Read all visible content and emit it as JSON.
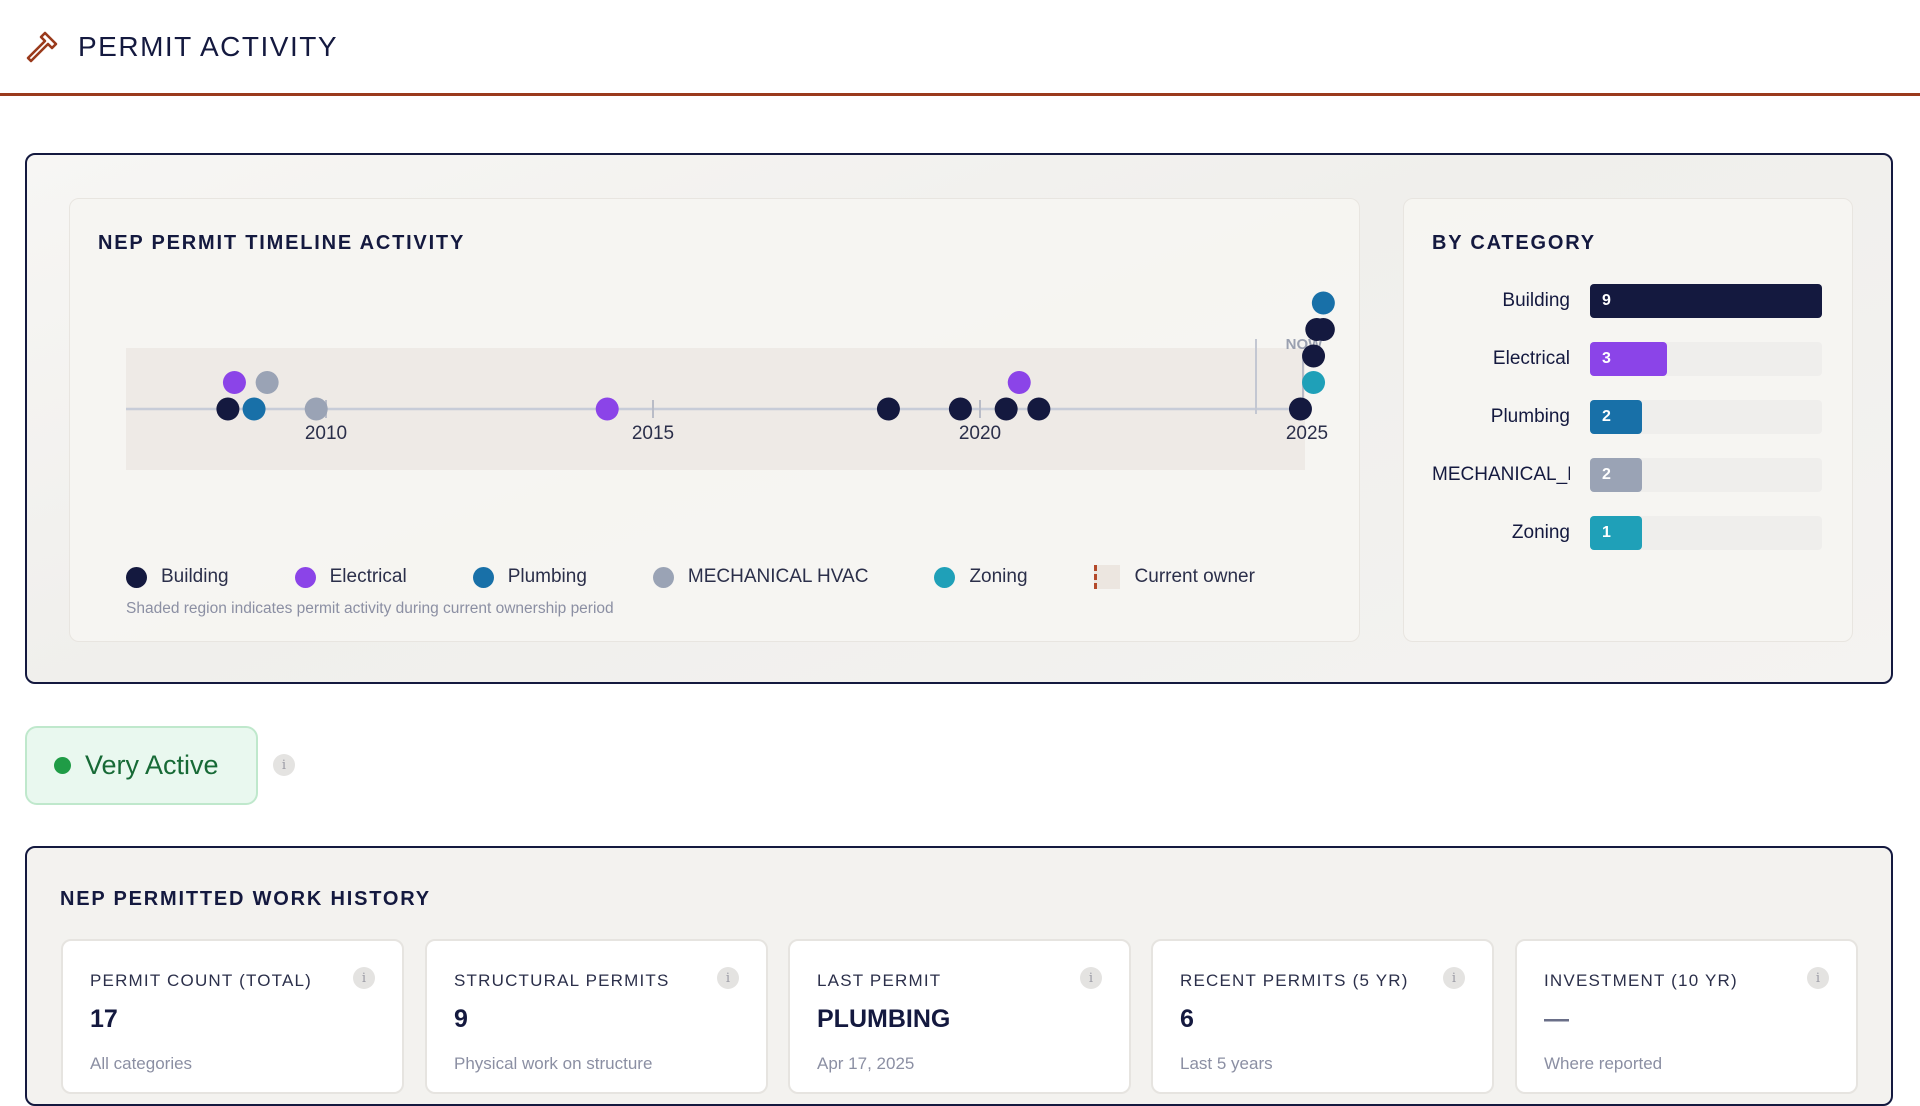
{
  "header": {
    "title": "PERMIT ACTIVITY",
    "icon": "hammer-icon"
  },
  "timeline": {
    "title": "NEP PERMIT TIMELINE ACTIVITY",
    "now_label": "NOW",
    "note": "Shaded region indicates permit activity during current ownership period",
    "legend": [
      {
        "label": "Building",
        "color": "#14193f"
      },
      {
        "label": "Electrical",
        "color": "#8b44e8"
      },
      {
        "label": "Plumbing",
        "color": "#1870a8"
      },
      {
        "label": "MECHANICAL HVAC",
        "color": "#9aa3b5"
      },
      {
        "label": "Zoning",
        "color": "#1fa0b8"
      },
      {
        "label": "Current owner",
        "color": "#b4492a"
      }
    ]
  },
  "chart_data": {
    "type": "scatter",
    "title": "NEP PERMIT TIMELINE ACTIVITY",
    "x_axis": {
      "range": [
        2008,
        2027
      ],
      "ticks": [
        "2010",
        "2015",
        "2020",
        "2025"
      ]
    },
    "series": [
      {
        "name": "Building",
        "color": "#14193f",
        "points": [
          {
            "year": 2008.5,
            "stack": 0
          },
          {
            "year": 2018.6,
            "stack": 0
          },
          {
            "year": 2019.7,
            "stack": 0
          },
          {
            "year": 2020.4,
            "stack": 0
          },
          {
            "year": 2020.9,
            "stack": 0
          },
          {
            "year": 2024.9,
            "stack": 0
          },
          {
            "year": 2025.1,
            "stack": 2
          },
          {
            "year": 2025.15,
            "stack": 3
          },
          {
            "year": 2025.25,
            "stack": 3
          }
        ]
      },
      {
        "name": "Electrical",
        "color": "#8b44e8",
        "points": [
          {
            "year": 2008.6,
            "stack": 1
          },
          {
            "year": 2014.3,
            "stack": 0
          },
          {
            "year": 2020.6,
            "stack": 1
          }
        ]
      },
      {
        "name": "Plumbing",
        "color": "#1870a8",
        "points": [
          {
            "year": 2008.9,
            "stack": 0
          },
          {
            "year": 2025.25,
            "stack": 4
          }
        ]
      },
      {
        "name": "MECHANICAL HVAC",
        "color": "#9aa3b5",
        "points": [
          {
            "year": 2009.1,
            "stack": 1
          },
          {
            "year": 2009.85,
            "stack": 0
          }
        ]
      },
      {
        "name": "Zoning",
        "color": "#1fa0b8",
        "points": [
          {
            "year": 2025.1,
            "stack": 1
          }
        ]
      }
    ],
    "current_owner_start_year": 2007.8,
    "now_year": 2026
  },
  "by_category": {
    "title": "BY CATEGORY",
    "max": 9,
    "items": [
      {
        "label": "Building",
        "value": 9,
        "color": "#14193f"
      },
      {
        "label": "Electrical",
        "value": 3,
        "color": "#8b44e8"
      },
      {
        "label": "Plumbing",
        "value": 2,
        "color": "#1870a8"
      },
      {
        "label": "MECHANICAL_HVAC",
        "value": 2,
        "color": "#9aa3b5"
      },
      {
        "label": "Zoning",
        "value": 1,
        "color": "#1fa0b8"
      }
    ]
  },
  "activity": {
    "label": "Very Active",
    "color": "#1f9c46",
    "info": "i"
  },
  "history": {
    "title": "NEP PERMITTED WORK HISTORY",
    "stats": [
      {
        "label": "PERMIT COUNT (TOTAL)",
        "value": "17",
        "sub": "All categories",
        "info": "i"
      },
      {
        "label": "STRUCTURAL PERMITS",
        "value": "9",
        "sub": "Physical work on structure",
        "info": "i"
      },
      {
        "label": "LAST PERMIT",
        "value": "PLUMBING",
        "sub": "Apr 17, 2025",
        "info": "i"
      },
      {
        "label": "RECENT PERMITS (5 YR)",
        "value": "6",
        "sub": "Last 5 years",
        "info": "i"
      },
      {
        "label": "INVESTMENT (10 YR)",
        "value": "—",
        "sub": "Where reported",
        "info": "i"
      }
    ]
  }
}
